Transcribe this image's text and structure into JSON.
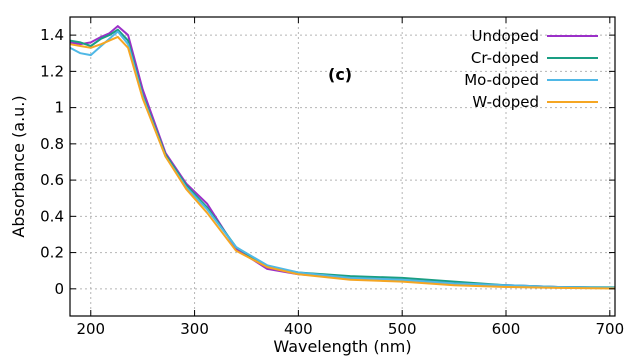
{
  "chart_data": {
    "type": "line",
    "xlabel": "Wavelength (nm)",
    "ylabel": "Absorbance (a.u.)",
    "annotation": "(c)",
    "xlim": [
      180,
      705
    ],
    "ylim": [
      -0.15,
      1.5
    ],
    "xticks": [
      200,
      300,
      400,
      500,
      600,
      700
    ],
    "yticks": [
      0,
      0.2,
      0.4,
      0.6,
      0.8,
      1,
      1.2,
      1.4
    ],
    "xtick_labels": [
      "200",
      "300",
      "400",
      "500",
      "600",
      "700"
    ],
    "ytick_labels": [
      "0",
      "0.2",
      "0.4",
      "0.6",
      "0.8",
      "1",
      "1.2",
      "1.4"
    ],
    "grid": true,
    "legend_position": "top-right",
    "series": [
      {
        "name": "Undoped",
        "color": "#9b30c8",
        "x": [
          180,
          190,
          200,
          210,
          218,
          226,
          236,
          250,
          272,
          292,
          312,
          340,
          370,
          400,
          450,
          500,
          550,
          600,
          650,
          705
        ],
        "y": [
          1.36,
          1.35,
          1.36,
          1.39,
          1.41,
          1.45,
          1.4,
          1.1,
          0.75,
          0.58,
          0.47,
          0.22,
          0.11,
          0.08,
          0.06,
          0.05,
          0.03,
          0.02,
          0.01,
          0.005
        ]
      },
      {
        "name": "Cr-doped",
        "color": "#1a9e83",
        "x": [
          180,
          190,
          200,
          210,
          218,
          226,
          236,
          250,
          272,
          292,
          312,
          340,
          370,
          400,
          450,
          500,
          550,
          600,
          650,
          705
        ],
        "y": [
          1.37,
          1.36,
          1.34,
          1.38,
          1.4,
          1.43,
          1.37,
          1.07,
          0.74,
          0.57,
          0.45,
          0.23,
          0.12,
          0.09,
          0.07,
          0.06,
          0.04,
          0.02,
          0.01,
          0.008
        ]
      },
      {
        "name": "Mo-doped",
        "color": "#4fb8e6",
        "x": [
          180,
          190,
          200,
          210,
          218,
          226,
          236,
          250,
          272,
          292,
          312,
          340,
          370,
          400,
          450,
          500,
          550,
          600,
          650,
          705
        ],
        "y": [
          1.33,
          1.3,
          1.29,
          1.34,
          1.38,
          1.42,
          1.35,
          1.06,
          0.73,
          0.56,
          0.44,
          0.23,
          0.13,
          0.09,
          0.06,
          0.05,
          0.03,
          0.02,
          0.01,
          0.005
        ]
      },
      {
        "name": "W-doped",
        "color": "#f5a623",
        "x": [
          180,
          190,
          200,
          210,
          218,
          226,
          236,
          250,
          272,
          292,
          312,
          340,
          370,
          400,
          450,
          500,
          550,
          600,
          650,
          705
        ],
        "y": [
          1.35,
          1.34,
          1.33,
          1.35,
          1.37,
          1.39,
          1.33,
          1.05,
          0.73,
          0.55,
          0.42,
          0.21,
          0.12,
          0.08,
          0.05,
          0.04,
          0.02,
          0.01,
          0.005,
          0.002
        ]
      }
    ]
  }
}
